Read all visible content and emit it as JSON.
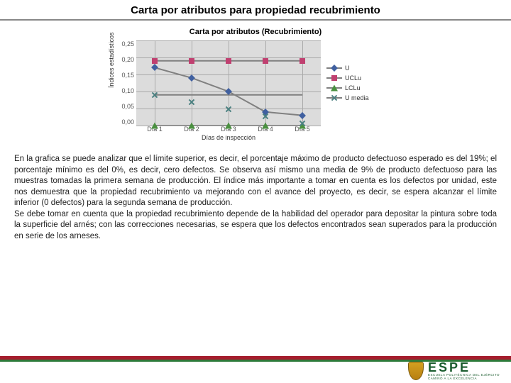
{
  "slide": {
    "title": "Carta por atributos para propiedad recubrimiento"
  },
  "chart": {
    "type": "line",
    "title": "Carta por atributos (Recubrimiento)",
    "ylabel": "Índices estadísticos",
    "xlabel": "Días de inspección",
    "background_color": "#dcdcdc",
    "grid_color": "#aaaaaa",
    "font_size_title": 11,
    "font_size_ticks": 9,
    "ylim": [
      0.0,
      0.25
    ],
    "ytick_step": 0.05,
    "yticks": [
      "0,25",
      "0,20",
      "0,15",
      "0,10",
      "0,05",
      "0,00"
    ],
    "xticks": [
      "Día 1",
      "Día 2",
      "Día 3",
      "Día 4",
      "Día 5"
    ],
    "series": [
      {
        "name": "U",
        "marker": "diamond",
        "color": "#4060a0",
        "line_color": "#808080",
        "values": [
          0.17,
          0.14,
          0.1,
          0.04,
          0.03
        ]
      },
      {
        "name": "UCLu",
        "marker": "square",
        "color": "#c04070",
        "line_color": "#808080",
        "values": [
          0.19,
          0.19,
          0.19,
          0.19,
          0.19
        ]
      },
      {
        "name": "LCLu",
        "marker": "triangle",
        "color": "#4a9040",
        "line_color": "#808080",
        "values": [
          0.0,
          0.0,
          0.0,
          0.0,
          0.0
        ]
      },
      {
        "name": "U media",
        "marker": "x",
        "color": "#4a8080",
        "line_color": "#808080",
        "values": [
          0.09,
          0.09,
          0.09,
          0.09,
          0.09
        ]
      }
    ]
  },
  "description": {
    "para1": "En la grafica se puede analizar que el límite superior, es decir, el porcentaje máximo de producto defectuoso esperado es del 19%; el porcentaje mínimo es del 0%, es decir, cero defectos. Se observa así mismo una media de 9% de producto defectuoso para las muestras tomadas la primera semana de producción. El índice más importante a tomar en cuenta es los defectos por unidad, este nos demuestra que la propiedad recubrimiento va mejorando con el avance del proyecto, es decir, se espera alcanzar el límite inferior (0 defectos) para la segunda semana de producción.",
    "para2": "Se debe tomar en cuenta que la propiedad recubrimiento depende de la habilidad del operador para depositar la pintura sobre toda la superficie del arnés; con las correcciones necesarias, se espera que los defectos encontrados sean superados para la producción en serie de los arneses."
  },
  "footer": {
    "stripe_red": "#a51d2d",
    "stripe_green": "#2d7a3a",
    "org_abbr": "ESPE",
    "org_line1": "ESCUELA POLITÉCNICA DEL EJÉRCITO",
    "org_line2": "CAMINO A LA EXCELENCIA"
  }
}
